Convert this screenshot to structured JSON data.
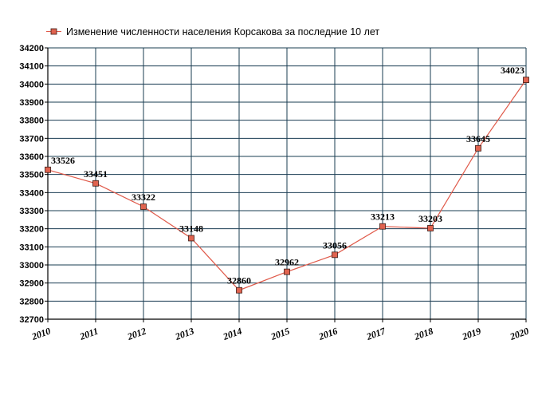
{
  "chart_data": {
    "type": "line",
    "title": "",
    "xlabel": "",
    "ylabel": "",
    "x": [
      "2010",
      "2011",
      "2012",
      "2013",
      "2014",
      "2015",
      "2016",
      "2017",
      "2018",
      "2019",
      "2020"
    ],
    "series": [
      {
        "name": "Изменение численности населения Корсакова за последние 10 лет",
        "values": [
          33526,
          33451,
          33322,
          33148,
          32860,
          32962,
          33056,
          33213,
          33203,
          33645,
          34023
        ]
      }
    ],
    "ylim": [
      32700,
      34200
    ],
    "yticks": [
      32700,
      32800,
      32900,
      33000,
      33100,
      33200,
      33300,
      33400,
      33500,
      33600,
      33700,
      33800,
      33900,
      34000,
      34100,
      34200
    ],
    "grid": true,
    "legend_position": "top",
    "colors": {
      "line": "#e05a4a",
      "marker_fill": "#e0634f",
      "marker_stroke": "#3a1a14",
      "grid": "#1a3c52",
      "axis": "#000000"
    }
  }
}
